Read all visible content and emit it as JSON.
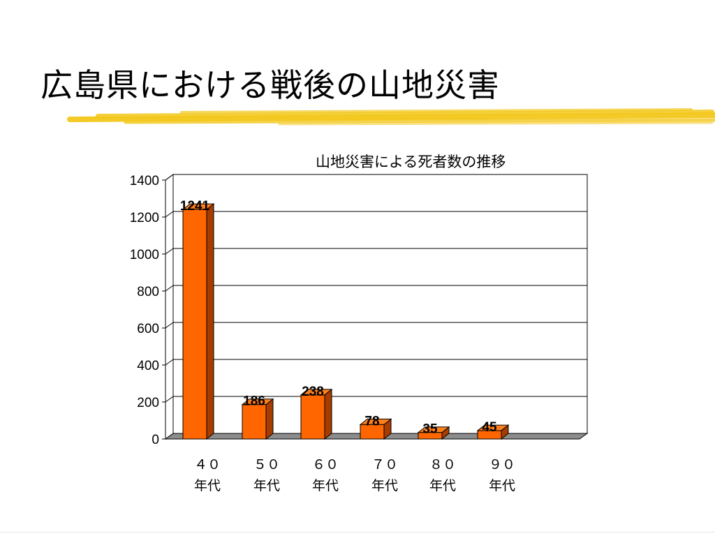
{
  "slide": {
    "title": "広島県における戦後の山地災害"
  },
  "colors": {
    "bar_front": "#ff6600",
    "bar_side": "#a63c00",
    "bar_top": "#ff7f1a",
    "floor": "#8c8c8c",
    "highlight": "#f3c81c"
  },
  "chart_data": {
    "type": "bar",
    "title": "山地災害による死者数の推移",
    "categories": [
      [
        "４０",
        "年代"
      ],
      [
        "５０",
        "年代"
      ],
      [
        "６０",
        "年代"
      ],
      [
        "７０",
        "年代"
      ],
      [
        "８０",
        "年代"
      ],
      [
        "９０",
        "年代"
      ]
    ],
    "values": [
      1241,
      186,
      238,
      78,
      35,
      45
    ],
    "data_labels": [
      "1241",
      "186",
      "238",
      "78",
      "35",
      "45"
    ],
    "ylim": [
      0,
      1400
    ],
    "yticks": [
      0,
      200,
      400,
      600,
      800,
      1000,
      1200,
      1400
    ],
    "xlabel": "",
    "ylabel": "",
    "grid": true,
    "legend": false,
    "style": "3d-column"
  }
}
